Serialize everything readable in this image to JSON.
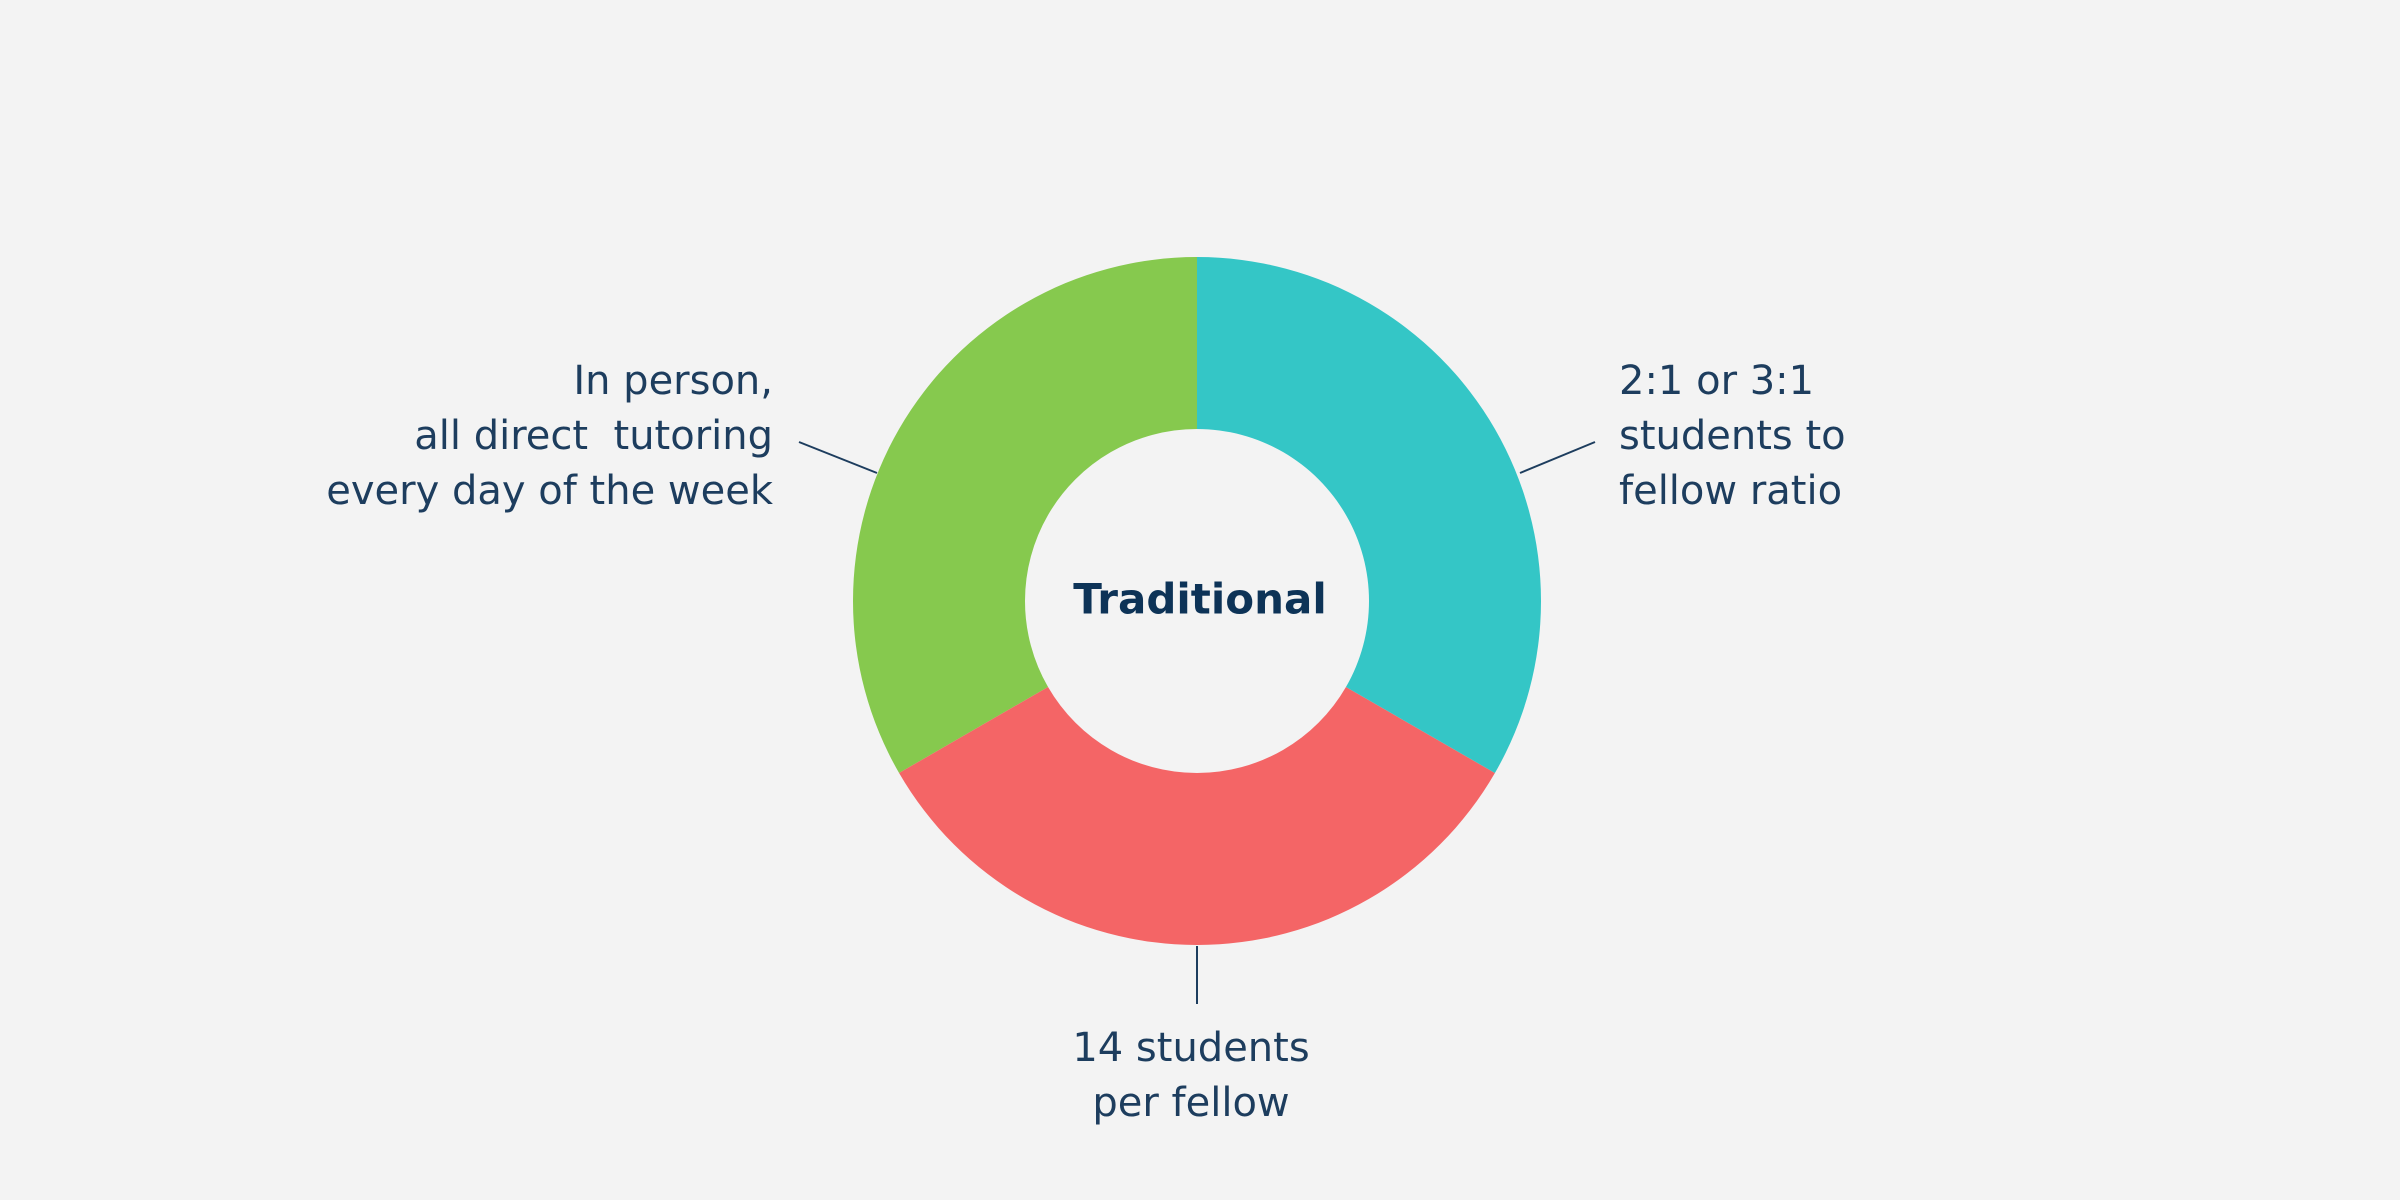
{
  "chart_data": {
    "type": "donut",
    "center_label": "Traditional",
    "categories": [
      [
        "2:1 or 3:1",
        "students to",
        "fellow ratio"
      ],
      [
        "14 students",
        "per fellow"
      ],
      [
        "In person,",
        "all direct  tutoring",
        "every day of the week"
      ]
    ],
    "values": [
      33.3,
      33.3,
      33.3
    ],
    "colors": [
      "#34c6c6",
      "#f46566",
      "#86c94e"
    ]
  }
}
